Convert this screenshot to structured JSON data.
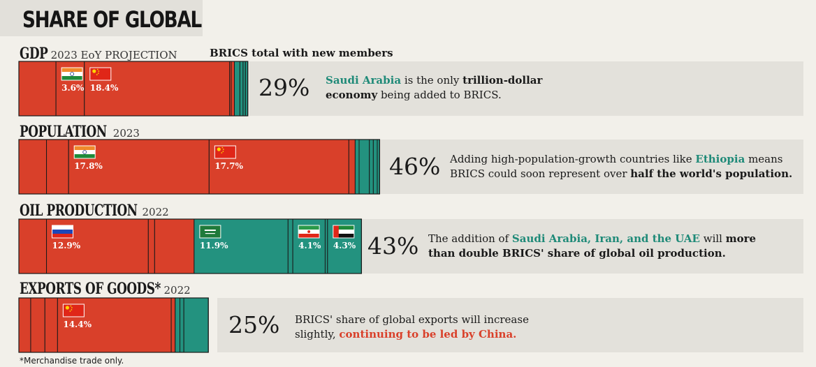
{
  "header": {
    "title": "SHARE OF GLOBAL"
  },
  "brics_label": "BRICS total with new members",
  "colors": {
    "brics": "#d9402a",
    "new_members": "#23927f",
    "band": "#e3e1db"
  },
  "footnote": "*Merchandise trade only.",
  "chart_data": [
    {
      "type": "bar",
      "title": "GDP",
      "subtitle": "2023 EoY PROJECTION",
      "total_label": "29%",
      "total": 29,
      "segments": [
        {
          "group": "brics",
          "value": 4.7
        },
        {
          "group": "brics",
          "value": 3.6,
          "label": "3.6%",
          "flag": "india"
        },
        {
          "group": "brics",
          "value": 18.4,
          "label": "18.4%",
          "flag": "china"
        },
        {
          "group": "brics",
          "value": 0.2
        },
        {
          "group": "brics",
          "value": 0.4
        },
        {
          "group": "new",
          "value": 0.7
        },
        {
          "group": "new",
          "value": 0.4
        },
        {
          "group": "new",
          "value": 0.3
        },
        {
          "group": "new",
          "value": 0.3
        }
      ],
      "description": {
        "hl": "Saudi Arabia",
        "t1": " is the only ",
        "b1": "trillion-dollar economy",
        "t2": " being added to BRICS."
      }
    },
    {
      "type": "bar",
      "title": "POPULATION",
      "subtitle": "2023",
      "total_label": "46%",
      "total": 46,
      "segments": [
        {
          "group": "brics",
          "value": 3.5
        },
        {
          "group": "brics",
          "value": 2.8
        },
        {
          "group": "brics",
          "value": 17.8,
          "label": "17.8%",
          "flag": "india"
        },
        {
          "group": "brics",
          "value": 17.7,
          "label": "17.7%",
          "flag": "china"
        },
        {
          "group": "brics",
          "value": 0.8
        },
        {
          "group": "new",
          "value": 0.5
        },
        {
          "group": "new",
          "value": 1.3
        },
        {
          "group": "new",
          "value": 0.5
        },
        {
          "group": "new",
          "value": 0.5
        },
        {
          "group": "new",
          "value": 0.3
        }
      ],
      "description": {
        "t1": "Adding high-population-growth countries like ",
        "hl": "Ethiopia",
        "t2": " means BRICS could soon represent over ",
        "b1": "half the world's population."
      }
    },
    {
      "type": "bar",
      "title": "OIL PRODUCTION",
      "subtitle": "2022",
      "total_label": "43%",
      "total": 43,
      "segments": [
        {
          "group": "brics",
          "value": 3.5
        },
        {
          "group": "brics",
          "value": 12.9,
          "label": "12.9%",
          "flag": "russia"
        },
        {
          "group": "brics",
          "value": 0.8
        },
        {
          "group": "brics",
          "value": 5.0
        },
        {
          "group": "new",
          "value": 11.9,
          "label": "11.9%",
          "flag": "saudi"
        },
        {
          "group": "new",
          "value": 0.6
        },
        {
          "group": "new",
          "value": 4.1,
          "label": "4.1%",
          "flag": "iran"
        },
        {
          "group": "new",
          "value": 0.3
        },
        {
          "group": "new",
          "value": 4.3,
          "label": "4.3%",
          "flag": "uae"
        }
      ],
      "description": {
        "t1": "The addition of ",
        "hl": "Saudi Arabia, Iran, and the UAE",
        "t2": " will ",
        "b1": "more than double BRICS' share of global oil production."
      }
    },
    {
      "type": "bar",
      "title": "EXPORTS OF GOODS*",
      "subtitle": "2022",
      "total_label": "25%",
      "total": 25,
      "segments": [
        {
          "group": "brics",
          "value": 1.5
        },
        {
          "group": "brics",
          "value": 1.8
        },
        {
          "group": "brics",
          "value": 1.6
        },
        {
          "group": "brics",
          "value": 14.4,
          "label": "14.4%",
          "flag": "china"
        },
        {
          "group": "brics",
          "value": 0.5
        },
        {
          "group": "new",
          "value": 0.6
        },
        {
          "group": "new",
          "value": 0.5
        },
        {
          "group": "new",
          "value": 3.1
        }
      ],
      "description": {
        "t1": "BRICS' share of global exports will increase slightly, ",
        "red": "continuing to be led by China."
      }
    }
  ]
}
